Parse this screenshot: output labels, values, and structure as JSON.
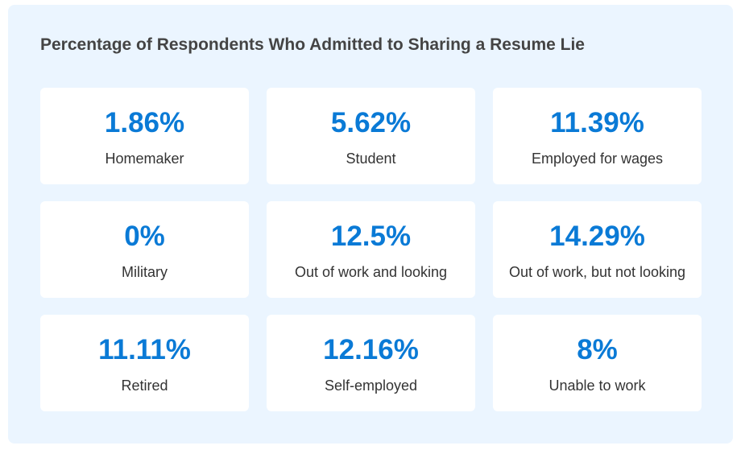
{
  "chart_data": {
    "type": "table",
    "title": "Percentage of Respondents Who Admitted to Sharing a Resume Lie",
    "unit": "%",
    "categories": [
      "Homemaker",
      "Student",
      "Employed for wages",
      "Military",
      "Out of work and looking",
      "Out of work, but not looking",
      "Retired",
      "Self-employed",
      "Unable to work"
    ],
    "values": [
      1.86,
      5.62,
      11.39,
      0,
      12.5,
      14.29,
      11.11,
      12.16,
      8
    ],
    "value_labels": [
      "1.86%",
      "5.62%",
      "11.39%",
      "0%",
      "12.5%",
      "14.29%",
      "11.11%",
      "12.16%",
      "8%"
    ]
  },
  "colors": {
    "background": "#ebf5ff",
    "card": "#ffffff",
    "value": "#0a7ad6",
    "title": "#444444",
    "label": "#333333"
  }
}
